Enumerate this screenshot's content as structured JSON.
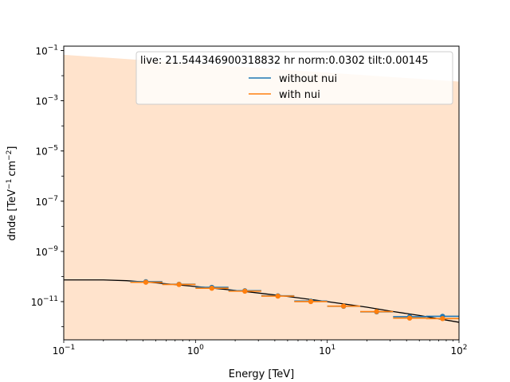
{
  "chart_data": {
    "type": "scatter",
    "xscale": "log",
    "yscale": "log",
    "xlim": [
      0.1,
      100
    ],
    "ylim": [
      3e-13,
      0.15
    ],
    "xlabel": "Energy [TeV]",
    "ylabel_main": "dnde [TeV",
    "ylabel_sup1": "−1",
    "ylabel_mid": "cm",
    "ylabel_sup2": "−2",
    "ylabel_end": "]",
    "xticks": [
      {
        "value": 0.1,
        "base": "10",
        "exp": "−1"
      },
      {
        "value": 1,
        "base": "10",
        "exp": "0"
      },
      {
        "value": 10,
        "base": "10",
        "exp": "1"
      },
      {
        "value": 100,
        "base": "10",
        "exp": "2"
      }
    ],
    "yticks": [
      {
        "value": 1e-11,
        "base": "10",
        "exp": "−11"
      },
      {
        "value": 1e-09,
        "base": "10",
        "exp": "−9"
      },
      {
        "value": 1e-07,
        "base": "10",
        "exp": "−7"
      },
      {
        "value": 1e-05,
        "base": "10",
        "exp": "−5"
      },
      {
        "value": 0.001,
        "base": "10",
        "exp": "−3"
      },
      {
        "value": 0.1,
        "base": "10",
        "exp": "−1"
      }
    ],
    "legend": {
      "title": "live: 21.544346900318832 hr norm:0.0302 tilt:0.00145",
      "position": "top-right",
      "entries": [
        {
          "label": "without nui",
          "color": "#1f77b4"
        },
        {
          "label": "with nui",
          "color": "#ff7f0e"
        }
      ]
    },
    "band": {
      "color": "#ffe3cc",
      "x": [
        0.1,
        100
      ],
      "upper": [
        0.068,
        0.0058
      ],
      "lower": [
        3e-13,
        3e-13
      ]
    },
    "model": {
      "color": "#000000",
      "x": [
        0.1,
        0.2,
        0.3,
        0.5,
        1,
        2,
        3,
        5,
        10,
        20,
        30,
        50,
        100
      ],
      "y": [
        7.3e-11,
        7.3e-11,
        6.8e-11,
        5.6e-11,
        4e-11,
        2.8e-11,
        2.2e-11,
        1.6e-11,
        1e-11,
        6e-12,
        4.2e-12,
        2.8e-12,
        1.5e-12
      ]
    },
    "series": [
      {
        "name": "without nui",
        "color": "#1f77b4",
        "x": [
          0.42,
          0.75,
          1.33,
          2.37,
          4.22,
          7.5,
          13.3,
          23.7,
          42.2,
          75
        ],
        "y": [
          6.2e-11,
          4.9e-11,
          3.7e-11,
          2.7e-11,
          1.7e-11,
          1.05e-11,
          6.5e-12,
          3.9e-12,
          2.5e-12,
          2.6e-12
        ],
        "xlo": [
          0.32,
          0.56,
          1.0,
          1.78,
          3.16,
          5.62,
          10.0,
          17.8,
          31.6,
          56.2
        ],
        "xhi": [
          0.56,
          1.0,
          1.78,
          3.16,
          5.62,
          10.0,
          17.8,
          31.6,
          56.2,
          100
        ]
      },
      {
        "name": "with nui",
        "color": "#ff7f0e",
        "x": [
          0.42,
          0.75,
          1.33,
          2.37,
          4.22,
          7.5,
          13.3,
          23.7,
          42.2,
          75
        ],
        "y": [
          5.9e-11,
          4.8e-11,
          3.4e-11,
          2.6e-11,
          1.65e-11,
          1e-11,
          6.6e-12,
          4e-12,
          2.2e-12,
          2.1e-12
        ],
        "xlo": [
          0.32,
          0.56,
          1.0,
          1.78,
          3.16,
          5.62,
          10.0,
          17.8,
          31.6,
          56.2
        ],
        "xhi": [
          0.56,
          1.0,
          1.78,
          3.16,
          5.62,
          10.0,
          17.8,
          31.6,
          56.2,
          100
        ]
      }
    ],
    "grid": false
  }
}
